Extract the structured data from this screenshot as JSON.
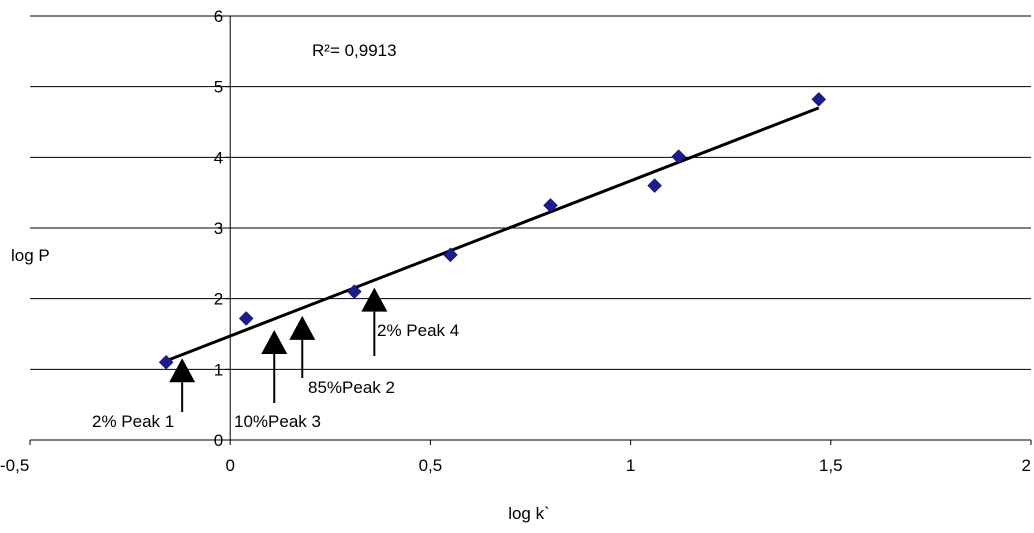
{
  "chart_data": {
    "type": "scatter",
    "xlabel": "log k`",
    "ylabel": "log P",
    "xlim": [
      -0.5,
      2
    ],
    "ylim": [
      0,
      6
    ],
    "x_ticks": [
      "-0,5",
      "0",
      "0,5",
      "1",
      "1,5",
      "2"
    ],
    "y_ticks": [
      "0",
      "1",
      "2",
      "3",
      "4",
      "5",
      "6"
    ],
    "grid": "horizontal",
    "marker_color": "#1c1c8c",
    "points": [
      {
        "x": -0.16,
        "y": 1.1
      },
      {
        "x": 0.04,
        "y": 1.72
      },
      {
        "x": 0.31,
        "y": 2.1
      },
      {
        "x": 0.55,
        "y": 2.62
      },
      {
        "x": 0.8,
        "y": 3.32
      },
      {
        "x": 1.06,
        "y": 3.6
      },
      {
        "x": 1.12,
        "y": 4.01
      },
      {
        "x": 1.47,
        "y": 4.82
      }
    ],
    "trendline": {
      "x": [
        -0.16,
        1.47
      ],
      "y": [
        1.12,
        4.7
      ]
    },
    "r_squared_label": "R²= 0,9913",
    "annotations": [
      {
        "label": "2% Peak 1",
        "x": -0.12,
        "y": 1.1
      },
      {
        "label": "10%Peak 3",
        "x": 0.11,
        "y": 1.5
      },
      {
        "label": "85%Peak 2",
        "x": 0.18,
        "y": 1.7
      },
      {
        "label": "2% Peak 4",
        "x": 0.36,
        "y": 2.1
      }
    ]
  }
}
